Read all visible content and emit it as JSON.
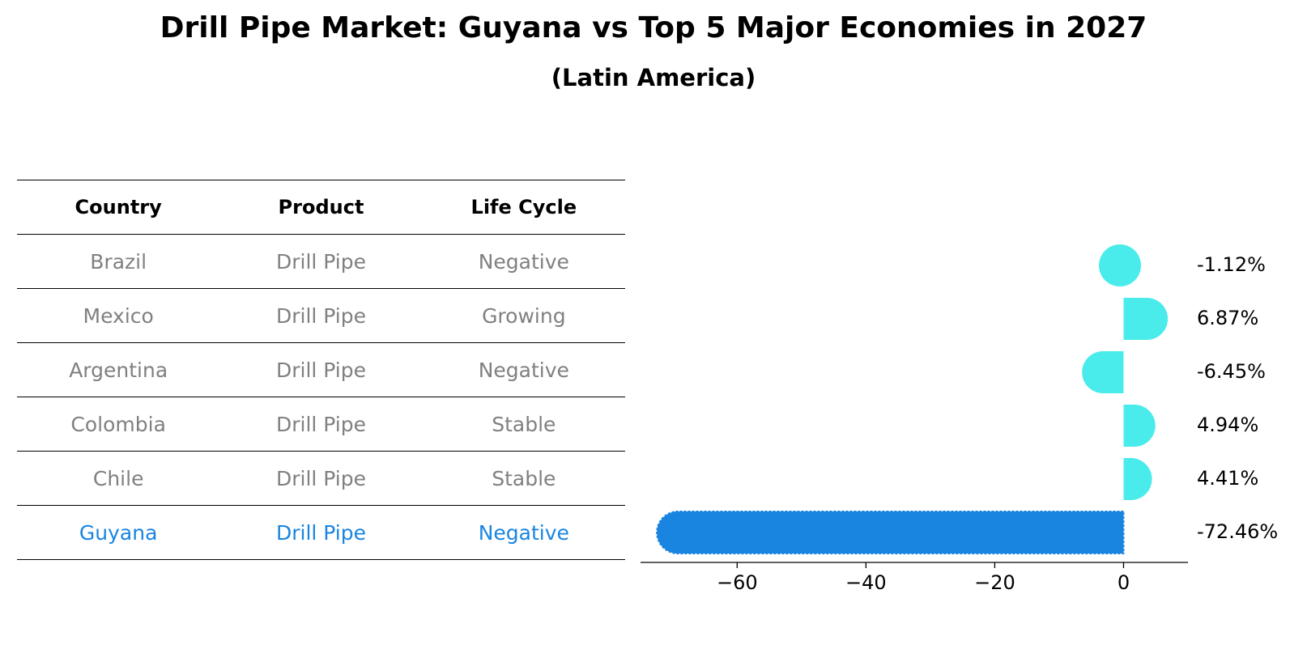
{
  "title": "Drill Pipe Market: Guyana vs Top 5 Major Economies in 2027",
  "subtitle": "(Latin America)",
  "table": {
    "headers": [
      "Country",
      "Product",
      "Life Cycle"
    ],
    "rows": [
      {
        "country": "Brazil",
        "product": "Drill Pipe",
        "life_cycle": "Negative"
      },
      {
        "country": "Mexico",
        "product": "Drill Pipe",
        "life_cycle": "Growing"
      },
      {
        "country": "Argentina",
        "product": "Drill Pipe",
        "life_cycle": "Negative"
      },
      {
        "country": "Colombia",
        "product": "Drill Pipe",
        "life_cycle": "Stable"
      },
      {
        "country": "Chile",
        "product": "Drill Pipe",
        "life_cycle": "Stable"
      },
      {
        "country": "Guyana",
        "product": "Drill Pipe",
        "life_cycle": "Negative"
      }
    ],
    "highlight_color": "#1a85e0",
    "text_color": "#808080"
  },
  "chart_data": {
    "type": "bar",
    "orientation": "horizontal",
    "categories": [
      "Brazil",
      "Mexico",
      "Argentina",
      "Colombia",
      "Chile",
      "Guyana"
    ],
    "values": [
      -1.12,
      6.87,
      -6.45,
      4.94,
      4.41,
      -72.46
    ],
    "value_labels": [
      "-1.12%",
      "6.87%",
      "-6.45%",
      "4.94%",
      "4.41%",
      "-72.46%"
    ],
    "xlim": [
      -75,
      10
    ],
    "xticks": [
      -60,
      -40,
      -20,
      0
    ],
    "xtick_labels": [
      "−60",
      "−40",
      "−20",
      "0"
    ],
    "highlight_category": "Guyana",
    "bar_color": "#4aeceb",
    "highlight_color": "#1a85e0",
    "xlabel": "",
    "ylabel": "",
    "grid": false
  }
}
